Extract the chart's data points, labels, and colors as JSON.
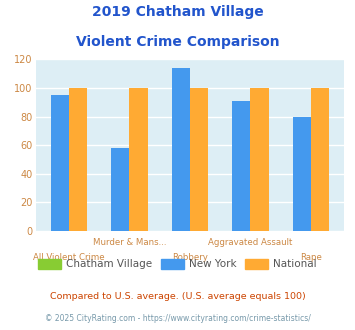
{
  "title_line1": "2019 Chatham Village",
  "title_line2": "Violent Crime Comparison",
  "title_color": "#2255cc",
  "categories_top": [
    "",
    "Murder & Mans...",
    "",
    "Aggravated Assault",
    ""
  ],
  "categories_bot": [
    "All Violent Crime",
    "",
    "Robbery",
    "",
    "Rape"
  ],
  "series": {
    "Chatham Village": {
      "values": [
        0,
        0,
        0,
        0,
        0
      ],
      "color": "#88cc33"
    },
    "New York": {
      "values": [
        95,
        58,
        114,
        91,
        80
      ],
      "color": "#4499ee"
    },
    "National": {
      "values": [
        100,
        100,
        100,
        100,
        100
      ],
      "color": "#ffaa33"
    }
  },
  "ylim": [
    0,
    120
  ],
  "yticks": [
    0,
    20,
    40,
    60,
    80,
    100,
    120
  ],
  "bg_color": "#ddeef5",
  "grid_color": "#ffffff",
  "footnote1": "Compared to U.S. average. (U.S. average equals 100)",
  "footnote2": "© 2025 CityRating.com - https://www.cityrating.com/crime-statistics/",
  "footnote1_color": "#cc4400",
  "footnote2_color": "#7799aa",
  "tick_color": "#cc8844",
  "bar_width": 0.3,
  "legend_text_color": "#555555"
}
